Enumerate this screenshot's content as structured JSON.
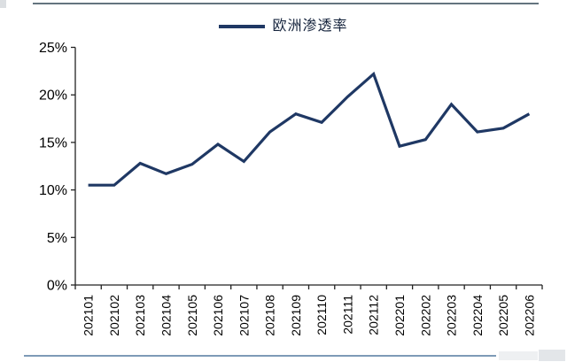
{
  "legend": {
    "label": "欧洲渗透率"
  },
  "colors": {
    "line": "#1f3864",
    "axis": "#222222",
    "tick_text": "#000000",
    "top_rule": "#64747f",
    "bottom_rule": "#7e9ab7"
  },
  "chart_data": {
    "type": "line",
    "title": "",
    "xlabel": "",
    "ylabel": "",
    "categories": [
      "202101",
      "202102",
      "202103",
      "202104",
      "202105",
      "202106",
      "202107",
      "202108",
      "202109",
      "202110",
      "202111",
      "202112",
      "202201",
      "202202",
      "202203",
      "202204",
      "202205",
      "202206"
    ],
    "series": [
      {
        "name": "欧洲渗透率",
        "values": [
          10.5,
          10.5,
          12.8,
          11.7,
          12.7,
          14.8,
          13.0,
          16.1,
          18.0,
          17.1,
          19.8,
          22.2,
          14.6,
          15.3,
          19.0,
          16.1,
          16.5,
          18.0
        ]
      }
    ],
    "ylim": [
      0,
      25
    ],
    "ytick_step": 5,
    "ytick_labels": [
      "0%",
      "5%",
      "10%",
      "15%",
      "20%",
      "25%"
    ],
    "grid": false,
    "legend_position": "top-center",
    "line_color": "#1f3864"
  }
}
